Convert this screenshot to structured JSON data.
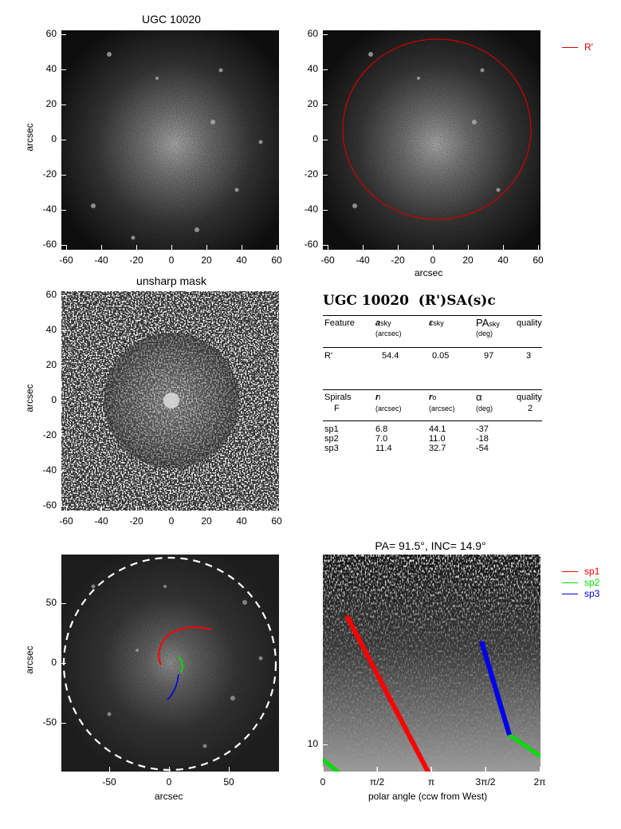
{
  "panels": {
    "p1": {
      "title": "UGC 10020",
      "ylabel": "arcsec",
      "xticks": [
        "-60",
        "-40",
        "-20",
        "0",
        "20",
        "40",
        "60"
      ],
      "yticks": [
        "60",
        "40",
        "20",
        "0",
        "-20",
        "-40",
        "-60"
      ]
    },
    "p2": {
      "xlabel": "arcsec",
      "xticks": [
        "-60",
        "-40",
        "-20",
        "0",
        "20",
        "40",
        "60"
      ],
      "yticks": [
        "60",
        "40",
        "20",
        "0",
        "-20",
        "-40",
        "-60"
      ],
      "legend": {
        "label": "R'",
        "color": "#dd0000"
      }
    },
    "p3": {
      "title": "unsharp mask",
      "ylabel": "arcsec",
      "xticks": [
        "-60",
        "-40",
        "-20",
        "0",
        "20",
        "40",
        "60"
      ],
      "yticks": [
        "60",
        "40",
        "20",
        "0",
        "-20",
        "-40",
        "-60"
      ]
    },
    "p5": {
      "xlabel": "arcsec",
      "ylabel": "arcsec",
      "xticks": [
        "-50",
        "0",
        "50"
      ],
      "yticks": [
        "50",
        "0",
        "-50"
      ]
    },
    "p6": {
      "title": "PA= 91.5°, INC= 14.9°",
      "xlabel": "polar angle (ccw from West)",
      "xticks": [
        "0",
        "π/2",
        "π",
        "3π/2",
        "2π"
      ],
      "yticks": [
        "10"
      ],
      "legend": [
        {
          "label": "sp1",
          "color": "#ff0000"
        },
        {
          "label": "sp2",
          "color": "#00dd00"
        },
        {
          "label": "sp3",
          "color": "#0000ee"
        }
      ]
    }
  },
  "table": {
    "heading": "UGC 10020  (R')SA(s)c",
    "features": {
      "header": {
        "c1": "Feature",
        "c2": "a",
        "c2sub": "sky",
        "c2unit": "(arcsec)",
        "c3": "ε",
        "c3sub": "sky",
        "c4": "PA",
        "c4sub": "sky",
        "c4unit": "(deg)",
        "c5": "quality"
      },
      "rows": [
        {
          "name": "R'",
          "a": "54.4",
          "e": "0.05",
          "pa": "97",
          "q": "3"
        }
      ]
    },
    "spirals": {
      "header": {
        "c1": "Spirals",
        "c1b": "F",
        "c2": "r",
        "c2sub": "i",
        "c2unit": "(arcsec)",
        "c3": "r",
        "c3sub": "o",
        "c3unit": "(arcsec)",
        "c4": "α",
        "c4unit": "(deg)",
        "c5": "quality",
        "c5b": "2"
      },
      "rows": [
        {
          "name": "sp1",
          "ri": "6.8",
          "ro": "44.1",
          "alpha": "-37"
        },
        {
          "name": "sp2",
          "ri": "7.0",
          "ro": "11.0",
          "alpha": "-18"
        },
        {
          "name": "sp3",
          "ri": "11.4",
          "ro": "32.7",
          "alpha": "-54"
        }
      ]
    }
  },
  "colors": {
    "sp1": "#ff0000",
    "sp2": "#00dd00",
    "sp3": "#0000ee",
    "ring": "#cc0000"
  }
}
